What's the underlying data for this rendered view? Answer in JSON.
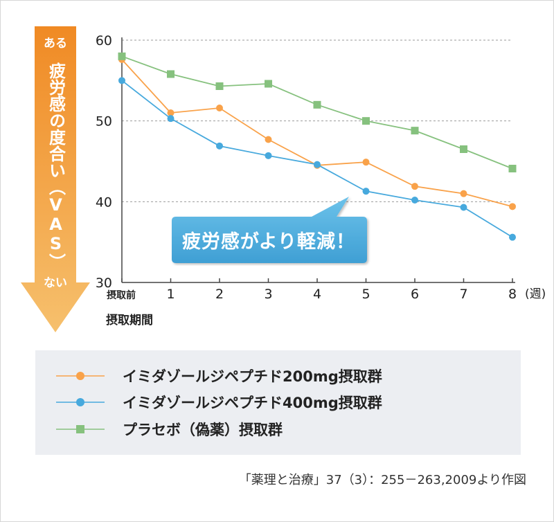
{
  "arrow": {
    "top_label": "ある",
    "axis_label": "疲労感の度合い（VAS）",
    "bottom_label": "ない",
    "gradient_top": "#f08a24",
    "gradient_bottom": "#f6c06d"
  },
  "callout": {
    "text": "疲労感がより軽減！",
    "color_top": "#6cc2ea",
    "color_bottom": "#3f9fd4"
  },
  "legend": {
    "items": [
      {
        "label": "イミダゾールジペプチド200mg摂取群",
        "color": "#f9a24a",
        "marker": "circle"
      },
      {
        "label": "イミダゾールジペプチド400mg摂取群",
        "color": "#47a9dd",
        "marker": "circle"
      },
      {
        "label": "プラセボ（偽薬）摂取群",
        "color": "#86c17e",
        "marker": "square"
      }
    ]
  },
  "source": "「薬理と治療」37（3）：255－263,2009より作図",
  "chart_data": {
    "type": "line",
    "x": [
      "摂取前",
      "1",
      "2",
      "3",
      "4",
      "5",
      "6",
      "7",
      "8"
    ],
    "x_unit": "(週)",
    "xlabel": "摂取期間",
    "ylabel": "疲労感の度合い（VAS）",
    "ylim": [
      30,
      60
    ],
    "yticks": [
      "30",
      "40",
      "50",
      "60"
    ],
    "grid": "horizontal dashed",
    "series": [
      {
        "name": "イミダゾールジペプチド200mg摂取群",
        "color": "#f9a24a",
        "marker": "circle",
        "values": [
          57.6,
          51.0,
          51.6,
          47.7,
          44.5,
          44.9,
          41.9,
          41.0,
          39.4
        ]
      },
      {
        "name": "イミダゾールジペプチド400mg摂取群",
        "color": "#47a9dd",
        "marker": "circle",
        "values": [
          55.0,
          50.3,
          46.9,
          45.7,
          44.6,
          41.3,
          40.2,
          39.3,
          35.6
        ]
      },
      {
        "name": "プラセボ（偽薬）摂取群",
        "color": "#86c17e",
        "marker": "square",
        "values": [
          58.0,
          55.8,
          54.3,
          54.6,
          52.0,
          50.0,
          48.8,
          46.5,
          44.1
        ]
      }
    ]
  }
}
